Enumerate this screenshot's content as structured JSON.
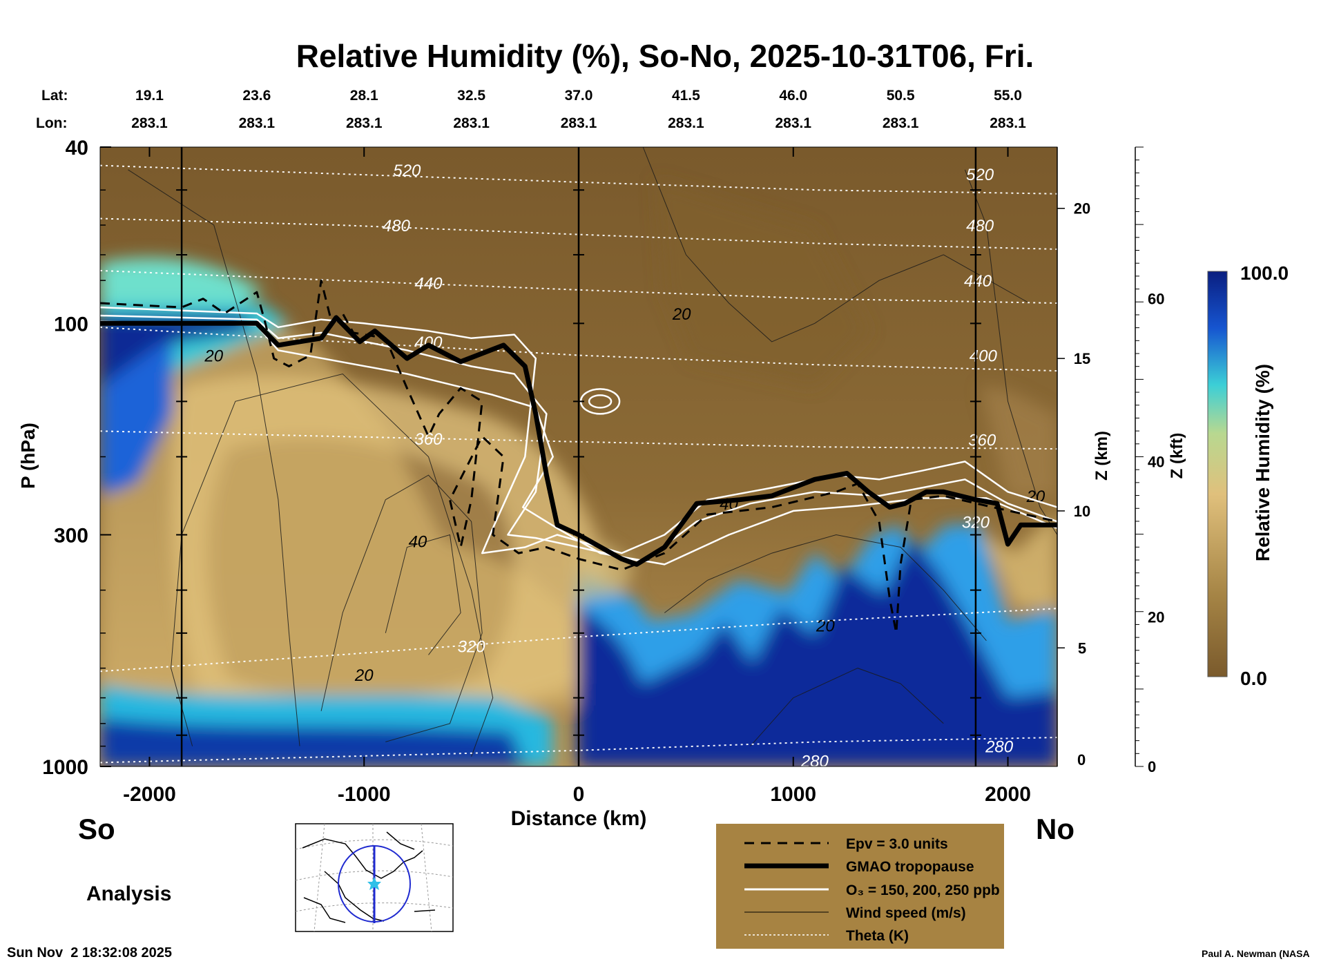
{
  "chart_data": {
    "type": "heatmap",
    "title": "Relative Humidity (%), So-No, 2025-10-31T06, Fri.",
    "xlabel": "Distance (km)",
    "ylabel": "P (hPa)",
    "xlim": [
      -2230,
      2230
    ],
    "ylim": [
      1000,
      40
    ],
    "y_scale": "log",
    "x_ticks": [
      "-2000",
      "-1000",
      "0",
      "1000",
      "2000"
    ],
    "x_tick_values": [
      -2000,
      -1000,
      0,
      1000,
      2000
    ],
    "y_ticks": [
      "40",
      "100",
      "300",
      "1000"
    ],
    "y_tick_values": [
      40,
      100,
      300,
      1000
    ],
    "lat_label": "Lat:",
    "lon_label": "Lon:",
    "lat_ticks": [
      "19.1",
      "23.6",
      "28.1",
      "32.5",
      "37.0",
      "41.5",
      "46.0",
      "50.5",
      "55.0"
    ],
    "lon_ticks": [
      "283.1",
      "283.1",
      "283.1",
      "283.1",
      "283.1",
      "283.1",
      "283.1",
      "283.1",
      "283.1"
    ],
    "lat_lon_x": [
      -2000,
      -1500,
      -1000,
      -500,
      0,
      500,
      1000,
      1500,
      2000
    ],
    "z_km_label": "Z (km)",
    "z_km_ticks": [
      "5",
      "10",
      "15",
      "20"
    ],
    "z_km_pressure": [
      540,
      265,
      120,
      55
    ],
    "z_kft_label": "Z (kft)",
    "z_kft_ticks": [
      "0",
      "20",
      "40",
      "60"
    ],
    "z_kft_pressure": [
      1000,
      460,
      205,
      88
    ],
    "z_km_zero": "0",
    "vertical_lines_km": [
      -1850,
      0,
      1850
    ],
    "tropopause": [
      [
        -2230,
        100
      ],
      [
        -1500,
        100
      ],
      [
        -1400,
        112
      ],
      [
        -1200,
        108
      ],
      [
        -1130,
        97
      ],
      [
        -1020,
        110
      ],
      [
        -950,
        104
      ],
      [
        -800,
        120
      ],
      [
        -700,
        112
      ],
      [
        -550,
        122
      ],
      [
        -350,
        112
      ],
      [
        -250,
        125
      ],
      [
        -200,
        160
      ],
      [
        -150,
        220
      ],
      [
        -100,
        285
      ],
      [
        0,
        300
      ],
      [
        200,
        340
      ],
      [
        270,
        350
      ],
      [
        400,
        320
      ],
      [
        550,
        255
      ],
      [
        750,
        250
      ],
      [
        900,
        245
      ],
      [
        1100,
        225
      ],
      [
        1250,
        218
      ],
      [
        1350,
        240
      ],
      [
        1450,
        260
      ],
      [
        1520,
        255
      ],
      [
        1620,
        240
      ],
      [
        1700,
        240
      ],
      [
        1850,
        250
      ],
      [
        1950,
        255
      ],
      [
        2000,
        315
      ],
      [
        2060,
        285
      ],
      [
        2230,
        285
      ]
    ],
    "theta": [
      {
        "label": "280",
        "p": [
          980,
          950,
          920,
          880,
          860
        ],
        "label_pos": [
          1100,
          970
        ]
      },
      {
        "label": "320",
        "p": [
          610,
          560,
          510,
          470,
          440
        ],
        "label_pos": [
          -500,
          535
        ]
      },
      {
        "label": "360",
        "p": [
          175,
          180,
          185,
          190,
          192
        ],
        "label_pos": [
          -700,
          182
        ]
      },
      {
        "label": "400",
        "p": [
          102,
          110,
          118,
          124,
          128
        ],
        "label_pos": [
          -700,
          110
        ]
      },
      {
        "label": "440",
        "p": [
          76,
          80,
          84,
          88,
          90
        ],
        "label_pos": [
          -700,
          81
        ]
      },
      {
        "label": "480",
        "p": [
          58,
          60,
          63,
          66,
          68
        ],
        "label_pos": [
          -850,
          60
        ]
      },
      {
        "label": "520",
        "p": [
          44,
          46,
          48,
          50,
          51
        ],
        "label_pos": [
          -800,
          45
        ]
      }
    ],
    "wind_labels": [
      {
        "text": "20",
        "x": -1700,
        "p": 118
      },
      {
        "text": "40",
        "x": -750,
        "p": 310
      },
      {
        "text": "20",
        "x": -1000,
        "p": 620
      },
      {
        "text": "20",
        "x": 480,
        "p": 95
      },
      {
        "text": "40",
        "x": 700,
        "p": 255
      },
      {
        "text": "20",
        "x": 1150,
        "p": 480
      },
      {
        "text": "20",
        "x": 2130,
        "p": 245
      }
    ],
    "colorbar": {
      "label": "Relative Humidity (%)",
      "max_label": "100.0",
      "min_label": "0.0",
      "range": [
        0,
        100
      ]
    },
    "legend_position": "bottom-right",
    "legend": [
      "Epv = 3.0 units",
      "GMAO tropopause",
      "O₃ = 150, 200, 250 ppb",
      "Wind speed (m/s)",
      "Theta (K)"
    ],
    "colors": {
      "dry": "#8a6a36",
      "mid": "#d8b970",
      "moist": "#35c8d8",
      "saturated": "#0a2890",
      "legend_bg": "#a78342"
    }
  },
  "labels": {
    "south": "So",
    "north": "No",
    "analysis": "Analysis",
    "timestamp": "Sun Nov  2 18:32:08 2025",
    "credit": "Paul A. Newman (NASA"
  },
  "map": {
    "icons": [
      "coastline-map-icon",
      "star-icon"
    ]
  }
}
